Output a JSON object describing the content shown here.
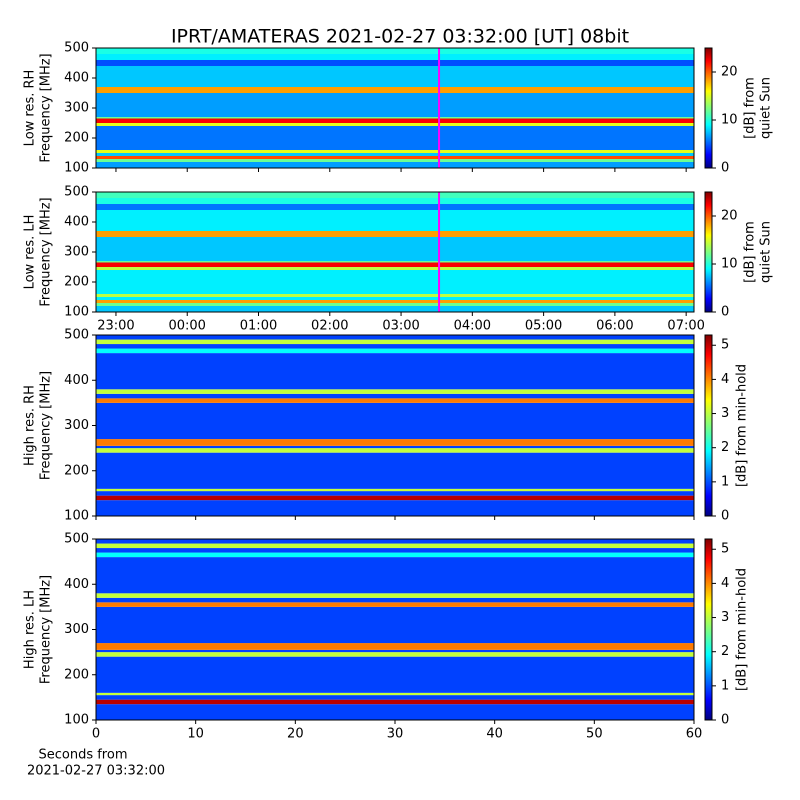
{
  "title": "IPRT/AMATERAS 2021-02-27 03:32:00 [UT]   08bit",
  "chart_data": [
    {
      "type": "heatmap",
      "ylabel": [
        "Low res. RH",
        "Frequency [MHz]"
      ],
      "ylim": [
        100,
        500
      ],
      "yticks": [
        100,
        200,
        300,
        400,
        500
      ],
      "xlim": [
        -1.28,
        7.11
      ],
      "xticks": [
        -1,
        0,
        1,
        2,
        3,
        4,
        5,
        6,
        7
      ],
      "y_edges": [
        100,
        120,
        130,
        140,
        150,
        160,
        240,
        250,
        265,
        270,
        350,
        370,
        440,
        460,
        480,
        500
      ],
      "values": [
        7,
        12,
        20,
        8,
        15,
        6,
        15,
        22,
        12,
        7,
        18,
        8,
        5,
        9,
        10
      ],
      "marker_x": 3.533,
      "marker_color": "#ff00ff",
      "colormap": "jet",
      "clim": [
        0,
        25
      ],
      "cticks": [
        0,
        10,
        20
      ],
      "clabel": [
        "[dB] from",
        "quiet Sun"
      ]
    },
    {
      "type": "heatmap",
      "ylabel": [
        "Low res. LH",
        "Frequency [MHz]"
      ],
      "ylim": [
        100,
        500
      ],
      "yticks": [
        100,
        200,
        300,
        400,
        500
      ],
      "xlim": [
        -1.28,
        7.11
      ],
      "xticks": [
        {
          "value": -1,
          "label": "23:00"
        },
        {
          "value": 0,
          "label": "00:00"
        },
        {
          "value": 1,
          "label": "01:00"
        },
        {
          "value": 2,
          "label": "02:00"
        },
        {
          "value": 3,
          "label": "03:00"
        },
        {
          "value": 4,
          "label": "04:00"
        },
        {
          "value": 5,
          "label": "05:00"
        },
        {
          "value": 6,
          "label": "06:00"
        },
        {
          "value": 7,
          "label": "07:00"
        }
      ],
      "y_edges": [
        100,
        120,
        130,
        140,
        150,
        160,
        240,
        250,
        265,
        270,
        350,
        370,
        440,
        460,
        480,
        500
      ],
      "values": [
        8,
        12,
        18,
        9,
        14,
        9,
        14,
        22,
        12,
        8,
        18,
        9,
        6,
        10,
        11
      ],
      "marker_x": 3.533,
      "marker_color": "#ff00ff",
      "colormap": "jet",
      "clim": [
        0,
        25
      ],
      "cticks": [
        0,
        10,
        20
      ],
      "clabel": [
        "[dB] from",
        "quiet Sun"
      ]
    },
    {
      "type": "heatmap",
      "ylabel": [
        "High res. RH",
        "Frequency [MHz]"
      ],
      "ylim": [
        100,
        500
      ],
      "yticks": [
        100,
        200,
        300,
        400,
        500
      ],
      "xlim": [
        0,
        60
      ],
      "xticks": [
        0,
        10,
        20,
        30,
        40,
        50,
        60
      ],
      "y_edges": [
        100,
        135,
        145,
        155,
        160,
        240,
        250,
        255,
        270,
        350,
        360,
        370,
        380,
        460,
        470,
        480,
        490,
        500
      ],
      "values": [
        1,
        5,
        1,
        3,
        1,
        3,
        1,
        4,
        1,
        4,
        1,
        3,
        1,
        2,
        1,
        3,
        1
      ],
      "colormap": "jet",
      "clim": [
        0,
        5.3
      ],
      "cticks": [
        0,
        1,
        2,
        3,
        4,
        5
      ],
      "clabel": [
        "[dB] from min-hold"
      ]
    },
    {
      "type": "heatmap",
      "ylabel": [
        "High res. LH",
        "Frequency [MHz]"
      ],
      "ylim": [
        100,
        500
      ],
      "yticks": [
        100,
        200,
        300,
        400,
        500
      ],
      "xlim": [
        0,
        60
      ],
      "xticks": [
        0,
        10,
        20,
        30,
        40,
        50,
        60
      ],
      "xlabel": [
        "Seconds from",
        "2021-02-27 03:32:00"
      ],
      "y_edges": [
        100,
        135,
        145,
        155,
        160,
        240,
        250,
        255,
        270,
        350,
        360,
        370,
        380,
        460,
        470,
        480,
        490,
        500
      ],
      "values": [
        1,
        5,
        1,
        3,
        1,
        3,
        1,
        4,
        1,
        4,
        1,
        3,
        1,
        2,
        1,
        3,
        1
      ],
      "colormap": "jet",
      "clim": [
        0,
        5.3
      ],
      "cticks": [
        0,
        1,
        2,
        3,
        4,
        5
      ],
      "clabel": [
        "[dB] from min-hold"
      ]
    }
  ]
}
